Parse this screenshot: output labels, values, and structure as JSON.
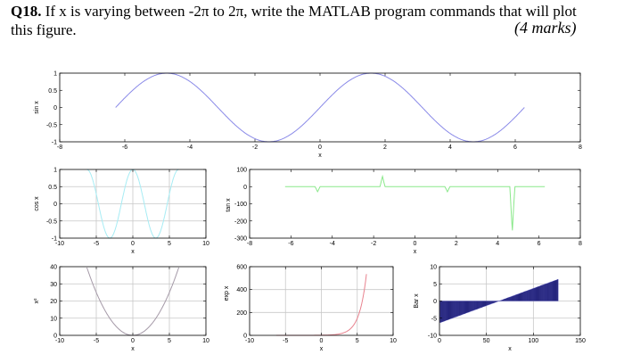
{
  "question": {
    "number": "Q18.",
    "text_line1": " If x is varying between -2π to 2π, write the MATLAB program commands that will plot",
    "text_line2": "this figure.",
    "marks": "(4 marks)"
  },
  "colors": {
    "sin": "#8a8ae8",
    "cos": "#a6ecf4",
    "tan": "#8ae88a",
    "sq": "#a59aa8",
    "exp": "#e8828e",
    "bar_fill": "#0a0a5a",
    "bar_edge": "#5f5fc8",
    "grid": "#c8c8c8",
    "frame": "#000000"
  },
  "chart_data": [
    {
      "type": "line",
      "function": "sin(x)",
      "x_range": [
        -6.2832,
        6.2832
      ],
      "ylabel": "sin x",
      "xlabel": "x",
      "xlim": [
        -8,
        8
      ],
      "ylim": [
        -1,
        1
      ],
      "xticks": [
        "-8",
        "-6",
        "-4",
        "-2",
        "0",
        "2",
        "4",
        "6",
        "8"
      ],
      "yticks": [
        "-1",
        "-0.5",
        "0",
        "0.5",
        "1"
      ],
      "grid": false
    },
    {
      "type": "line",
      "function": "cos(x)",
      "x_range": [
        -6.2832,
        6.2832
      ],
      "ylabel": "cos x",
      "xlabel": "x",
      "xlim": [
        -10,
        10
      ],
      "ylim": [
        -1,
        1
      ],
      "xticks": [
        "-10",
        "-5",
        "0",
        "5",
        "10"
      ],
      "yticks": [
        "-1",
        "-0.5",
        "0",
        "0.5",
        "1"
      ],
      "grid": true
    },
    {
      "type": "line",
      "function": "tan(x)",
      "x_range": [
        -6.2832,
        6.2832
      ],
      "ylabel": "tan x",
      "xlabel": "x",
      "xlim": [
        -8,
        8
      ],
      "ylim": [
        -300,
        100
      ],
      "xticks": [
        "-8",
        "-6",
        "-4",
        "-2",
        "0",
        "2",
        "4",
        "6",
        "8"
      ],
      "yticks": [
        "-300",
        "-200",
        "-100",
        "0",
        "100"
      ],
      "spikes": [
        {
          "x": -4.71,
          "y": -30
        },
        {
          "x": -1.57,
          "y": 60
        },
        {
          "x": 1.57,
          "y": -30
        },
        {
          "x": 4.71,
          "y": -260
        }
      ],
      "grid": false
    },
    {
      "type": "line",
      "function": "x^2",
      "x_range": [
        -6.2832,
        6.2832
      ],
      "ylabel": "x²",
      "xlabel": "x",
      "xlim": [
        -10,
        10
      ],
      "ylim": [
        0,
        40
      ],
      "xticks": [
        "-10",
        "-5",
        "0",
        "5",
        "10"
      ],
      "yticks": [
        "0",
        "10",
        "20",
        "30",
        "40"
      ],
      "grid": true
    },
    {
      "type": "line",
      "function": "exp(x)",
      "x_range": [
        -6.2832,
        6.2832
      ],
      "ylabel": "exp x",
      "xlabel": "x",
      "xlim": [
        -10,
        10
      ],
      "ylim": [
        0,
        600
      ],
      "xticks": [
        "-10",
        "-5",
        "0",
        "5",
        "10"
      ],
      "yticks": [
        "0",
        "200",
        "400",
        "600"
      ],
      "grid": true
    },
    {
      "type": "bar",
      "function": "x",
      "bar_count": 126,
      "x_range": [
        -6.2832,
        6.2832
      ],
      "ylabel": "Bar x",
      "xlabel": "x",
      "xlim": [
        0,
        150
      ],
      "ylim": [
        -10,
        10
      ],
      "xticks": [
        "0",
        "50",
        "100",
        "150"
      ],
      "yticks": [
        "-10",
        "-5",
        "0",
        "5",
        "10"
      ],
      "grid": true
    }
  ]
}
